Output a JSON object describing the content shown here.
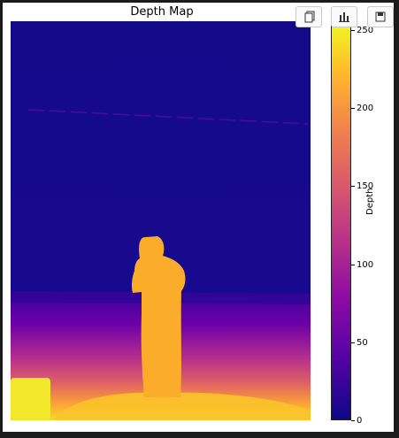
{
  "figure": {
    "title": "Depth Map",
    "colorbar_label": "Depth",
    "colormap": "plasma",
    "colorbar_ticks": [
      "0",
      "50",
      "100",
      "150",
      "200",
      "250"
    ],
    "colorbar_range": [
      0,
      255
    ]
  },
  "toolbar": {
    "copy_icon": "copy-icon",
    "chart_icon": "bar-chart-icon",
    "save_icon": "save-icon"
  },
  "colors": {
    "background_far": "#170a8c",
    "person": "#fbac2b",
    "near": "#f4d62f",
    "window_frame": "#1b1b1b"
  }
}
